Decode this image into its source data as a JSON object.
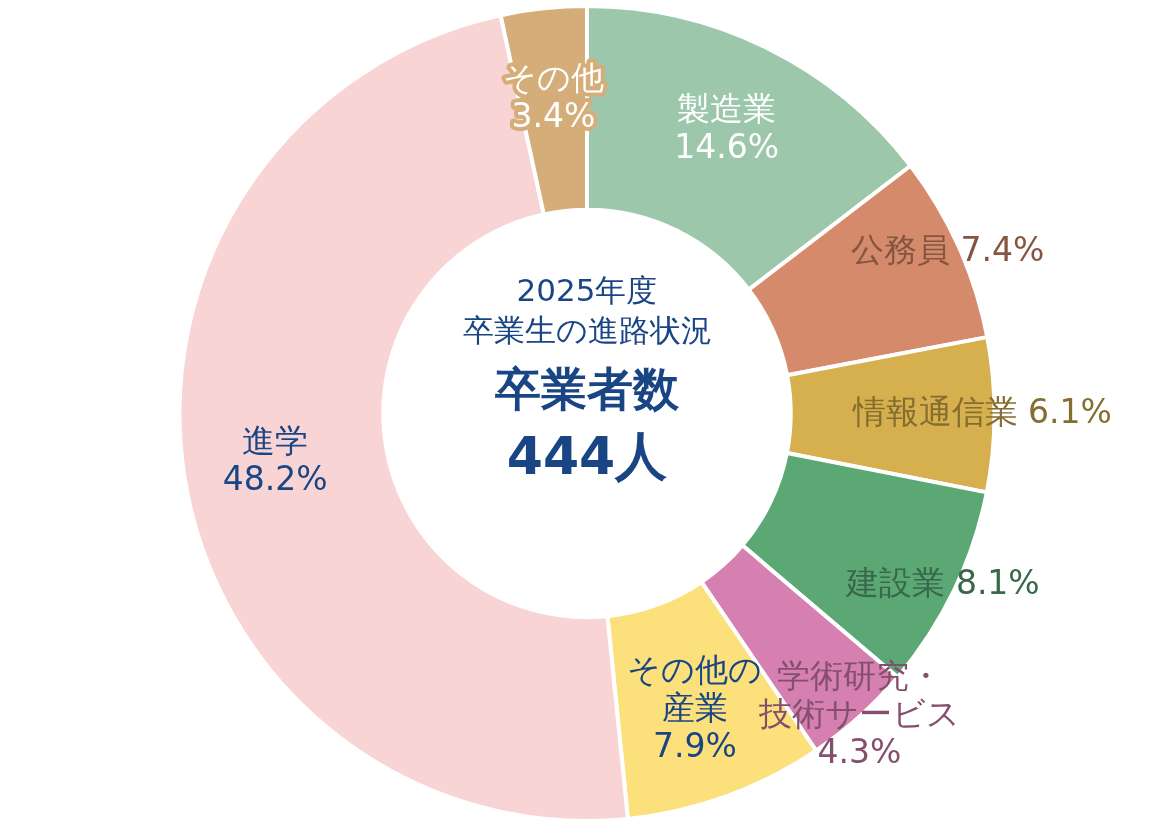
{
  "chart_data": {
    "type": "donut",
    "title": "2025年度",
    "subtitle": "卒業生の進路状況",
    "annotations": [
      "卒業者数",
      "444人"
    ],
    "categories": [
      "製造業",
      "公務員",
      "情報通信業",
      "建設業",
      "学術研究・技術サービス",
      "その他の産業",
      "進学",
      "その他"
    ],
    "values": [
      14.6,
      7.4,
      6.1,
      8.1,
      4.3,
      7.9,
      48.2,
      3.4
    ],
    "value_labels": [
      "14.6%",
      "7.4%",
      "6.1%",
      "8.1%",
      "4.3%",
      "7.9%",
      "48.2%",
      "3.4%"
    ],
    "colors": [
      "#9cc7aa",
      "#d58b6b",
      "#d6b04e",
      "#5ba874",
      "#d580b1",
      "#fbe07b",
      "#f8d4d4",
      "#d4ad79"
    ],
    "legend": false
  }
}
